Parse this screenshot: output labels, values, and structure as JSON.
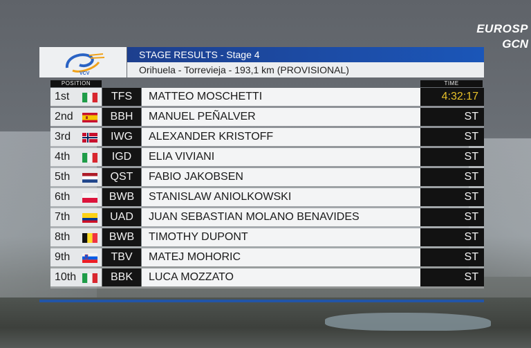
{
  "broadcaster": {
    "line1": "EUROSP",
    "line2": "GCN"
  },
  "logo": {
    "text": "VCV"
  },
  "header": {
    "title": "STAGE RESULTS - Stage 4",
    "subtitle": "Orihuela - Torrevieja - 193,1 km (PROVISIONAL)",
    "col_position": "POSITION",
    "col_time": "TIME"
  },
  "results": [
    {
      "position": "1st",
      "flag": "italy",
      "team": "TFS",
      "rider": "MATTEO MOSCHETTI",
      "time": "4:32:17"
    },
    {
      "position": "2nd",
      "flag": "spain",
      "team": "BBH",
      "rider": "MANUEL PEÑALVER",
      "time": "ST"
    },
    {
      "position": "3rd",
      "flag": "norway",
      "team": "IWG",
      "rider": "ALEXANDER KRISTOFF",
      "time": "ST"
    },
    {
      "position": "4th",
      "flag": "italy",
      "team": "IGD",
      "rider": "ELIA VIVIANI",
      "time": "ST"
    },
    {
      "position": "5th",
      "flag": "netherlands",
      "team": "QST",
      "rider": "FABIO JAKOBSEN",
      "time": "ST"
    },
    {
      "position": "6th",
      "flag": "poland",
      "team": "BWB",
      "rider": "STANISLAW ANIOLKOWSKI",
      "time": "ST"
    },
    {
      "position": "7th",
      "flag": "colombia",
      "team": "UAD",
      "rider": "JUAN SEBASTIAN MOLANO BENAVIDES",
      "time": "ST"
    },
    {
      "position": "8th",
      "flag": "belgium",
      "team": "BWB",
      "rider": "TIMOTHY DUPONT",
      "time": "ST"
    },
    {
      "position": "9th",
      "flag": "slovenia",
      "team": "TBV",
      "rider": "MATEJ MOHORIC",
      "time": "ST"
    },
    {
      "position": "10th",
      "flag": "italy",
      "team": "BBK",
      "rider": "LUCA MOZZATO",
      "time": "ST"
    }
  ],
  "colors": {
    "leader_time": "#e7c12a",
    "title_bar": "#1b56b8"
  }
}
